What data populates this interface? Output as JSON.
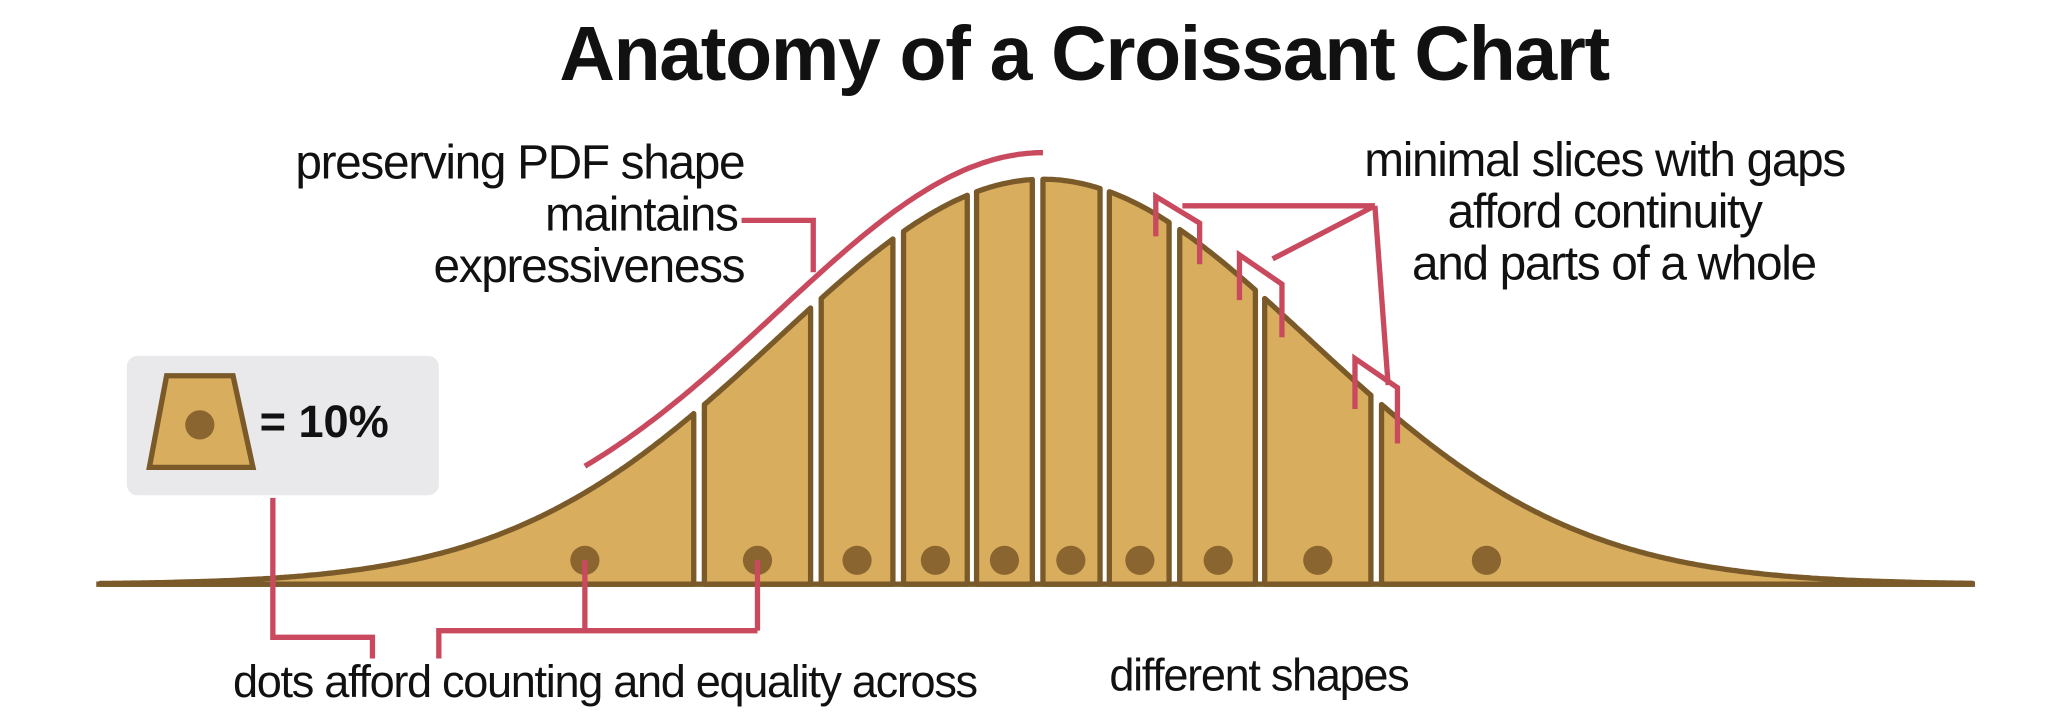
{
  "title": "Anatomy of a Croissant Chart",
  "legend": {
    "label": "= 10%"
  },
  "annotations": {
    "shape": [
      "preserving PDF shape",
      "maintains",
      "expressiveness"
    ],
    "slices": [
      "minimal slices with gaps",
      "afford continuity",
      "and parts of a whole"
    ],
    "dots": [
      "dots afford counting and equality across",
      "different shapes"
    ]
  }
}
